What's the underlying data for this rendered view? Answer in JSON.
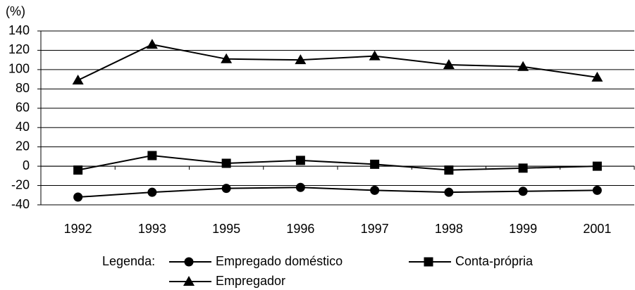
{
  "chart_data": {
    "type": "line",
    "y_label": "(%)",
    "categories": [
      "1992",
      "1993",
      "1995",
      "1996",
      "1997",
      "1998",
      "1999",
      "2001"
    ],
    "series": [
      {
        "name": "Empregado doméstico",
        "color": "#000000",
        "marker": "circle",
        "values": [
          -32,
          -27,
          -23,
          -22,
          -25,
          -27,
          -26,
          -25
        ]
      },
      {
        "name": "Conta-própria",
        "color": "#000000",
        "marker": "square",
        "values": [
          -4,
          11,
          3,
          6,
          2,
          -4,
          -2,
          0
        ]
      },
      {
        "name": "Empregador",
        "color": "#000000",
        "marker": "triangle",
        "values": [
          89,
          126,
          111,
          110,
          114,
          105,
          103,
          92
        ]
      }
    ],
    "ylim": [
      -40,
      140
    ],
    "yticks": [
      -40,
      -20,
      0,
      20,
      40,
      60,
      80,
      100,
      120,
      140
    ],
    "grid": true,
    "legend_title": "Legenda:"
  }
}
